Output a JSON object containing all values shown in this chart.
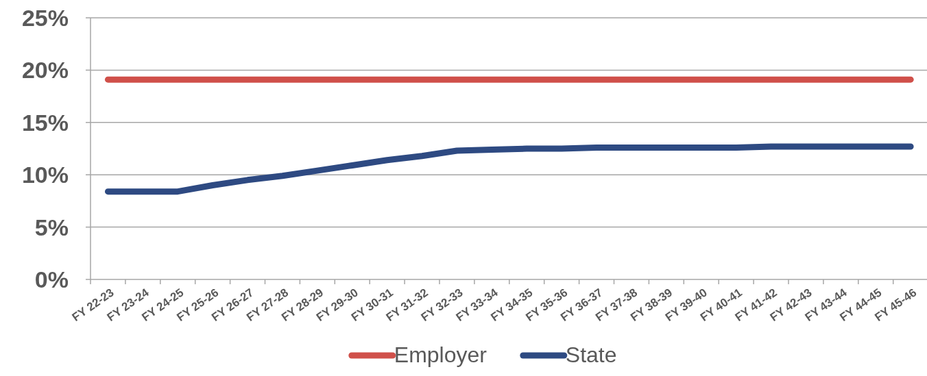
{
  "chart_data": {
    "type": "line",
    "categories": [
      "FY 22-23",
      "FY 23-24",
      "FY 24-25",
      "FY 25-26",
      "FY 26-27",
      "FY 27-28",
      "FY 28-29",
      "FY 29-30",
      "FY 30-31",
      "FY 31-32",
      "FY 32-33",
      "FY 33-34",
      "FY 34-35",
      "FY 35-36",
      "FY 36-37",
      "FY 37-38",
      "FY 38-39",
      "FY 39-40",
      "FY 40-41",
      "FY 41-42",
      "FY 42-43",
      "FY 43-44",
      "FY 44-45",
      "FY 45-46"
    ],
    "series": [
      {
        "name": "Employer",
        "color": "#d0504a",
        "values": [
          19.1,
          19.1,
          19.1,
          19.1,
          19.1,
          19.1,
          19.1,
          19.1,
          19.1,
          19.1,
          19.1,
          19.1,
          19.1,
          19.1,
          19.1,
          19.1,
          19.1,
          19.1,
          19.1,
          19.1,
          19.1,
          19.1,
          19.1,
          19.1
        ]
      },
      {
        "name": "State",
        "color": "#2e4a82",
        "values": [
          8.4,
          8.4,
          8.4,
          9.0,
          9.5,
          9.9,
          10.4,
          10.9,
          11.4,
          11.8,
          12.3,
          12.4,
          12.5,
          12.5,
          12.6,
          12.6,
          12.6,
          12.6,
          12.6,
          12.7,
          12.7,
          12.7,
          12.7,
          12.7
        ]
      }
    ],
    "ylim": [
      0,
      25
    ],
    "yticks": [
      {
        "value": 0,
        "label": "0%"
      },
      {
        "value": 5,
        "label": "5%"
      },
      {
        "value": 10,
        "label": "10%"
      },
      {
        "value": 15,
        "label": "15%"
      },
      {
        "value": 20,
        "label": "20%"
      },
      {
        "value": 25,
        "label": "25%"
      }
    ],
    "grid": "y",
    "legend": "bottom",
    "marker": "none",
    "line_style": "solid"
  }
}
